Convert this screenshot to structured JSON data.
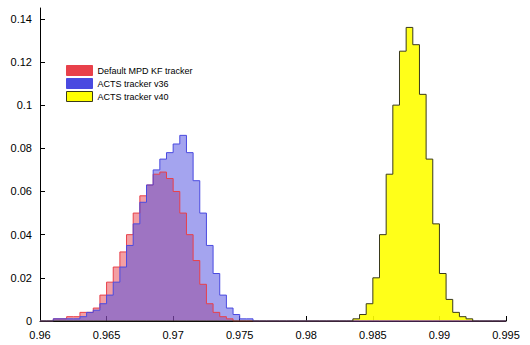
{
  "chart_data": {
    "type": "histogram",
    "bins": [
      0.96,
      0.9605,
      0.961,
      0.9615,
      0.962,
      0.9625,
      0.963,
      0.9635,
      0.964,
      0.9645,
      0.965,
      0.9655,
      0.966,
      0.9665,
      0.967,
      0.9675,
      0.968,
      0.9685,
      0.969,
      0.9695,
      0.97,
      0.9705,
      0.971,
      0.9715,
      0.972,
      0.9725,
      0.973,
      0.9735,
      0.974,
      0.9745,
      0.975,
      0.9755,
      0.976,
      0.9765,
      0.977,
      0.9775,
      0.978,
      0.9785,
      0.979,
      0.9795,
      0.98,
      0.9805,
      0.981,
      0.9815,
      0.982,
      0.9825,
      0.983,
      0.9835,
      0.984,
      0.9845,
      0.985,
      0.9855,
      0.986,
      0.9865,
      0.987,
      0.9875,
      0.988,
      0.9885,
      0.989,
      0.9895,
      0.99,
      0.9905,
      0.991,
      0.9915,
      0.992,
      0.9925,
      0.993,
      0.9935,
      0.994,
      0.9945,
      0.995
    ],
    "series": [
      {
        "name": "Default MPD KF tracker",
        "color": "#e8404a",
        "values": [
          0,
          0,
          0.001,
          0.001,
          0.002,
          0.002,
          0.004,
          0.004,
          0.006,
          0.012,
          0.018,
          0.025,
          0.032,
          0.04,
          0.05,
          0.058,
          0.063,
          0.068,
          0.069,
          0.066,
          0.06,
          0.05,
          0.04,
          0.028,
          0.017,
          0.008,
          0.004,
          0.002,
          0.001,
          0,
          0,
          0,
          0,
          0,
          0,
          0,
          0,
          0,
          0,
          0,
          0,
          0,
          0,
          0,
          0,
          0,
          0,
          0,
          0,
          0,
          0,
          0,
          0,
          0,
          0,
          0,
          0,
          0,
          0,
          0,
          0,
          0,
          0,
          0,
          0,
          0,
          0,
          0,
          0,
          0
        ]
      },
      {
        "name": "ACTS tracker v36",
        "color": "#4a4ae0",
        "values": [
          0,
          0,
          0.001,
          0.001,
          0.001,
          0.001,
          0.002,
          0.004,
          0.005,
          0.008,
          0.012,
          0.018,
          0.025,
          0.035,
          0.045,
          0.055,
          0.063,
          0.07,
          0.075,
          0.078,
          0.082,
          0.086,
          0.078,
          0.065,
          0.05,
          0.035,
          0.022,
          0.012,
          0.006,
          0.003,
          0.001,
          0.001,
          0,
          0,
          0,
          0,
          0,
          0,
          0,
          0,
          0,
          0,
          0,
          0,
          0,
          0,
          0,
          0,
          0,
          0,
          0,
          0,
          0,
          0,
          0,
          0,
          0,
          0,
          0,
          0,
          0,
          0,
          0,
          0,
          0,
          0,
          0,
          0,
          0,
          0
        ]
      },
      {
        "name": "ACTS tracker v40",
        "color": "#ffff00",
        "values": [
          0,
          0,
          0,
          0,
          0,
          0,
          0,
          0,
          0,
          0,
          0,
          0,
          0,
          0,
          0,
          0,
          0,
          0,
          0,
          0,
          0,
          0,
          0,
          0,
          0,
          0,
          0,
          0,
          0,
          0,
          0,
          0,
          0,
          0,
          0,
          0,
          0,
          0,
          0,
          0,
          0,
          0,
          0,
          0,
          0,
          0,
          0,
          0.001,
          0.003,
          0.008,
          0.02,
          0.04,
          0.068,
          0.1,
          0.125,
          0.136,
          0.128,
          0.105,
          0.075,
          0.045,
          0.022,
          0.01,
          0.004,
          0.002,
          0.001,
          0,
          0,
          0,
          0,
          0
        ]
      }
    ],
    "xlim": [
      0.96,
      0.995
    ],
    "xticks": [
      0.96,
      0.965,
      0.97,
      0.975,
      0.98,
      0.985,
      0.99,
      0.995
    ],
    "ylim": [
      0,
      0.145
    ],
    "yticks": [
      0,
      0.02,
      0.04,
      0.06,
      0.08,
      0.1,
      0.12,
      0.14
    ],
    "grid": false,
    "legend": "upper left"
  }
}
